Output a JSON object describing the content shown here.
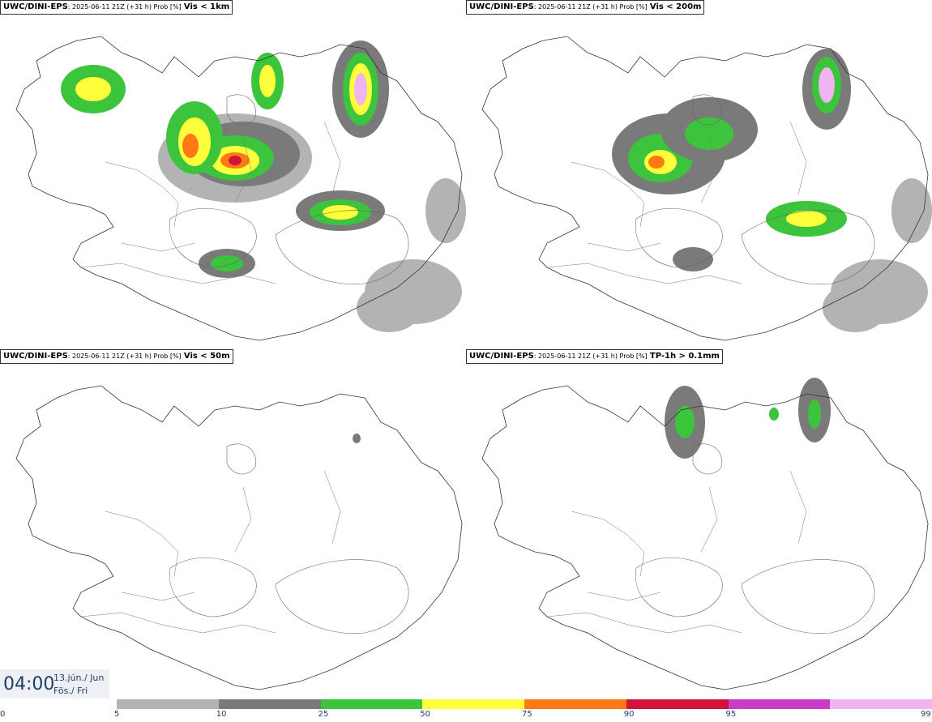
{
  "panels": [
    {
      "model": "UWC/DINI-EPS",
      "meta": ": 2025-06-11 21Z (+31 h) Prob [%]",
      "field": "Vis < 1km"
    },
    {
      "model": "UWC/DINI-EPS",
      "meta": ": 2025-06-11 21Z (+31 h) Prob [%]",
      "field": "Vis < 200m"
    },
    {
      "model": "UWC/DINI-EPS",
      "meta": ": 2025-06-11 21Z (+31 h) Prob [%]",
      "field": "Vis < 50m"
    },
    {
      "model": "UWC/DINI-EPS",
      "meta": ": 2025-06-11 21Z (+31 h) Prob [%]",
      "field": "TP-1h > 0.1mm"
    }
  ],
  "valid_time": {
    "time": "04:00",
    "date_line1": "13.jún./ Jun",
    "date_line2": "Fös./ Fri"
  },
  "colorbar": {
    "ticks": [
      "0",
      "5",
      "10",
      "25",
      "50",
      "75",
      "90",
      "95",
      "99"
    ],
    "colors": [
      "#b3b3b3",
      "#7a7a7a",
      "#3cc43c",
      "#ffff3c",
      "#ff7a14",
      "#d2143c",
      "#c83cc8",
      "#f0b4f0"
    ]
  }
}
